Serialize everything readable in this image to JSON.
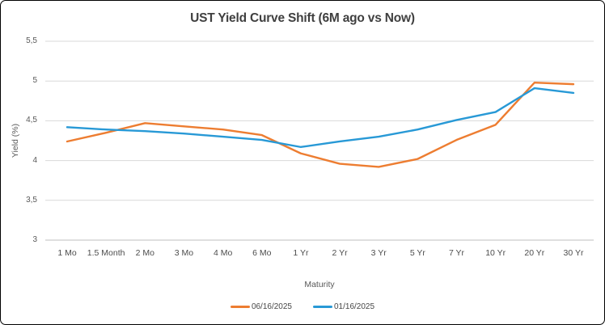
{
  "chart_data": {
    "type": "line",
    "title": "UST Yield Curve Shift (6M ago vs Now)",
    "xlabel": "Maturity",
    "ylabel": "Yield (%)",
    "categories": [
      "1 Mo",
      "1.5 Month",
      "2 Mo",
      "3 Mo",
      "4 Mo",
      "6 Mo",
      "1 Yr",
      "2 Yr",
      "3 Yr",
      "5 Yr",
      "7 Yr",
      "10 Yr",
      "20 Yr",
      "30 Yr"
    ],
    "series": [
      {
        "name": "06/16/2025",
        "color": "#ED7D31",
        "values": [
          4.24,
          4.35,
          4.47,
          4.43,
          4.39,
          4.32,
          4.09,
          3.96,
          3.92,
          4.02,
          4.26,
          4.45,
          4.98,
          4.96
        ]
      },
      {
        "name": "01/16/2025",
        "color": "#2899D6",
        "values": [
          4.42,
          4.39,
          4.37,
          4.34,
          4.3,
          4.26,
          4.17,
          4.24,
          4.3,
          4.39,
          4.51,
          4.61,
          4.91,
          4.85
        ]
      }
    ],
    "ylim": [
      3,
      5.5
    ],
    "yticks": [
      {
        "value": 3,
        "label": "3"
      },
      {
        "value": 3.5,
        "label": "3,5"
      },
      {
        "value": 4,
        "label": "4"
      },
      {
        "value": 4.5,
        "label": "4,5"
      },
      {
        "value": 5,
        "label": "5"
      },
      {
        "value": 5.5,
        "label": "5,5"
      }
    ],
    "grid": "horizontal-only",
    "gridline_color": "#D9D9D9",
    "baseline_color": "#BFBFBF",
    "legend_position": "bottom"
  }
}
